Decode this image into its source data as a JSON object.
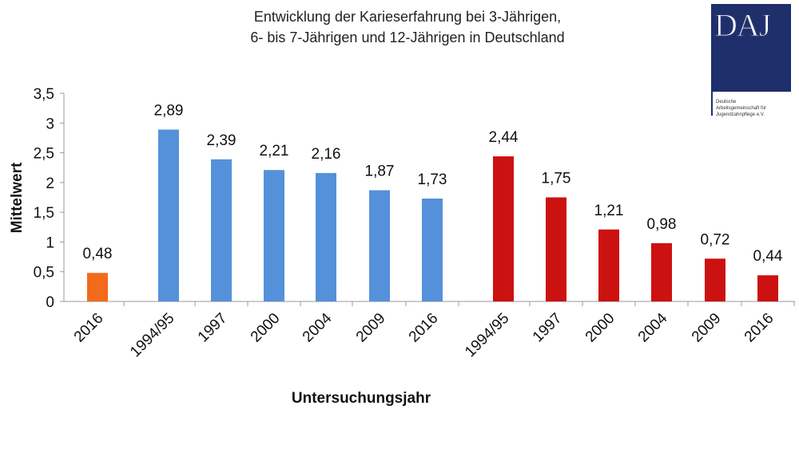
{
  "chart_data": {
    "type": "bar",
    "title": [
      "Entwicklung der Karieserfahrung bei 3-Jährigen,",
      "6- bis 7-Jährigen und 12-Jährigen in Deutschland"
    ],
    "xlabel": "Untersuchungsjahr",
    "ylabel": "Mittelwert",
    "ylim": [
      0,
      3.5
    ],
    "yticks": [
      "0",
      "0,5",
      "1",
      "1,5",
      "2",
      "2,5",
      "3",
      "3,5"
    ],
    "grid": false,
    "series": [
      {
        "name": "3-Jährige",
        "color": "#f26a1b",
        "categories": [
          "2016"
        ],
        "values": [
          0.48
        ],
        "labels": [
          "0,48"
        ]
      },
      {
        "name": "6- bis 7-Jährige",
        "color": "#5591da",
        "categories": [
          "1994/95",
          "1997",
          "2000",
          "2004",
          "2009",
          "2016"
        ],
        "values": [
          2.89,
          2.39,
          2.21,
          2.16,
          1.87,
          1.73
        ],
        "labels": [
          "2,89",
          "2,39",
          "2,21",
          "2,16",
          "1,87",
          "1,73"
        ]
      },
      {
        "name": "12-Jährige",
        "color": "#cc1111",
        "categories": [
          "1994/95",
          "1997",
          "2000",
          "2004",
          "2009",
          "2016"
        ],
        "values": [
          2.44,
          1.75,
          1.21,
          0.98,
          0.72,
          0.44
        ],
        "labels": [
          "2,44",
          "1,75",
          "1,21",
          "0,98",
          "0,72",
          "0,44"
        ]
      }
    ]
  },
  "logo": {
    "text": "DAJ",
    "subtitle": [
      "Deutsche",
      "Arbeitsgemeinschaft für",
      "Jugendzahnpflege e.V."
    ]
  }
}
